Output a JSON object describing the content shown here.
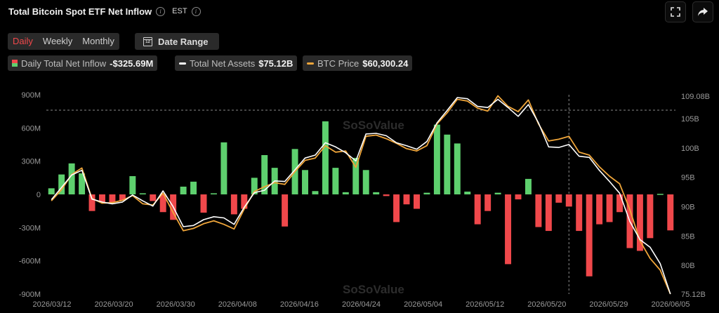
{
  "header": {
    "title": "Total Bitcoin Spot ETF Net Inflow",
    "timezone": "EST"
  },
  "tabs": [
    {
      "label": "Daily",
      "active": true
    },
    {
      "label": "Weekly",
      "active": false
    },
    {
      "label": "Monthly",
      "active": false
    }
  ],
  "date_range": {
    "label": "Date Range",
    "icon_text": "12"
  },
  "legend": [
    {
      "label": "Daily Total Net Inflow",
      "value": "-$325.69M",
      "kind": "bar"
    },
    {
      "label": "Total Net Assets",
      "value": "$75.12B",
      "kind": "line",
      "color": "#ffffff"
    },
    {
      "label": "BTC Price",
      "value": "$60,300.24",
      "kind": "line",
      "color": "#f0a63a"
    }
  ],
  "watermark": "SoSoValue",
  "colors": {
    "positive": "#5ed06e",
    "negative": "#f0484b",
    "assets": "#ffffff",
    "price": "#f0a63a"
  },
  "chart_data": {
    "type": "bar",
    "x_tick_labels": [
      "2026/03/12",
      "2026/03/20",
      "2026/03/30",
      "2026/04/08",
      "2026/04/16",
      "2026/04/24",
      "2026/05/04",
      "2026/05/12",
      "2026/05/20",
      "2026/05/29",
      "2026/06/05"
    ],
    "y_left": {
      "ticks": [
        "900M",
        "600M",
        "300M",
        "0",
        "-300M",
        "-600M",
        "-900M"
      ],
      "range": [
        -900,
        900
      ],
      "unit": "M"
    },
    "y_right": {
      "ticks": [
        "109.08B",
        "105B",
        "100B",
        "95B",
        "90B",
        "85B",
        "80B",
        "75.12B"
      ],
      "range": [
        75.12,
        109.08
      ],
      "unit": "B"
    },
    "crosshair_index": 51,
    "series": [
      {
        "name": "Daily Total Net Inflow",
        "kind": "bar",
        "axis": "left",
        "values": [
          55,
          180,
          280,
          190,
          -150,
          -70,
          -70,
          -55,
          165,
          10,
          -60,
          -160,
          -230,
          70,
          115,
          -165,
          10,
          470,
          -180,
          -130,
          150,
          355,
          240,
          -290,
          410,
          220,
          30,
          660,
          240,
          20,
          330,
          220,
          20,
          -15,
          -250,
          -90,
          -130,
          15,
          630,
          540,
          460,
          25,
          -270,
          -150,
          15,
          -630,
          -45,
          140,
          -295,
          -330,
          -75,
          -110,
          -330,
          -740,
          -270,
          -250,
          -160,
          -485,
          -510,
          -395,
          5,
          -325
        ]
      },
      {
        "name": "Total Net Assets",
        "kind": "line",
        "axis": "right",
        "values": [
          91.2,
          93.3,
          95.4,
          96.2,
          91.3,
          90.8,
          90.5,
          90.8,
          92.0,
          91.0,
          90.1,
          92.7,
          90.0,
          86.6,
          86.8,
          87.8,
          88.3,
          88.1,
          87.0,
          89.9,
          92.4,
          92.8,
          94.4,
          94.3,
          96.3,
          98.3,
          98.8,
          100.9,
          100.2,
          99.2,
          97.8,
          102.4,
          102.5,
          102.1,
          100.9,
          100.4,
          99.8,
          101.1,
          104.3,
          106.4,
          108.6,
          108.4,
          107.1,
          106.9,
          108.3,
          106.9,
          105.4,
          107.4,
          104.3,
          100.2,
          100.1,
          100.6,
          98.6,
          98.4,
          96.2,
          94.3,
          92.3,
          87.5,
          84.4,
          83.1,
          80.3,
          75.12
        ]
      },
      {
        "name": "BTC Price",
        "kind": "line",
        "axis": "right",
        "values": [
          91.0,
          92.9,
          95.5,
          96.6,
          91.4,
          90.6,
          90.7,
          91.1,
          91.9,
          90.5,
          90.3,
          92.3,
          89.0,
          85.9,
          86.3,
          87.1,
          87.6,
          87.0,
          86.2,
          89.6,
          92.6,
          93.4,
          94.1,
          93.8,
          96.0,
          97.9,
          98.3,
          100.4,
          99.3,
          99.5,
          96.7,
          102.0,
          102.2,
          101.6,
          100.8,
          99.9,
          99.5,
          100.4,
          104.1,
          106.0,
          108.3,
          108.0,
          106.8,
          106.3,
          108.9,
          107.1,
          106.2,
          108.2,
          104.1,
          101.2,
          101.5,
          102.0,
          99.3,
          98.8,
          96.8,
          95.2,
          93.9,
          89.5,
          84.2,
          81.2,
          79.2,
          75.12
        ]
      }
    ]
  }
}
